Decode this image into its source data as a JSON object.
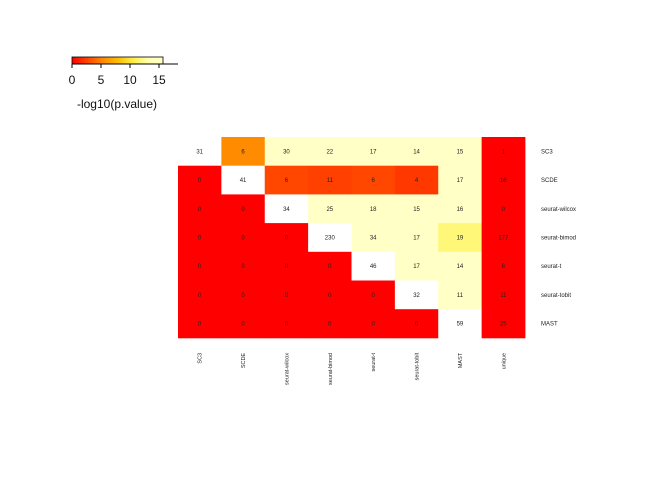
{
  "chart_data": {
    "type": "heatmap",
    "rows": [
      "SC3",
      "SCDE",
      "seurat-wilcox",
      "seurat-bimod",
      "seurat-t",
      "seurat-tobit",
      "MAST"
    ],
    "columns": [
      "SC3",
      "SCDE",
      "seurat-wilcox",
      "seurat-bimod",
      "seurat-t",
      "seurat-tobit",
      "MAST",
      "unique"
    ],
    "cell_labels": [
      [
        "31",
        "6",
        "30",
        "22",
        "17",
        "14",
        "15",
        "1"
      ],
      [
        "0",
        "41",
        "6",
        "11",
        "6",
        "4",
        "17",
        "16"
      ],
      [
        "0",
        "0",
        "34",
        "25",
        "18",
        "15",
        "16",
        "0"
      ],
      [
        "0",
        "0",
        "0",
        "230",
        "34",
        "17",
        "19",
        "177"
      ],
      [
        "0",
        "0",
        "0",
        "0",
        "46",
        "17",
        "14",
        "6"
      ],
      [
        "0",
        "0",
        "0",
        "0",
        "0",
        "32",
        "11",
        "11"
      ],
      [
        "0",
        "0",
        "0",
        "0",
        "0",
        "0",
        "59",
        "25"
      ]
    ],
    "neg_log10_pvalue": [
      [
        null,
        5.5,
        15.5,
        15.5,
        15.5,
        15.5,
        15.5,
        0
      ],
      [
        0,
        null,
        2.8,
        2.5,
        2.8,
        2.2,
        15.5,
        0
      ],
      [
        0,
        0,
        null,
        15.5,
        15.5,
        15.5,
        15.5,
        0
      ],
      [
        0,
        0,
        0,
        null,
        15.5,
        15.5,
        12.0,
        0
      ],
      [
        0,
        0,
        0,
        0,
        null,
        15.5,
        15.5,
        0
      ],
      [
        0,
        0,
        0,
        0,
        0,
        null,
        15.5,
        0
      ],
      [
        0,
        0,
        0,
        0,
        0,
        0,
        null,
        0
      ]
    ],
    "diagonal_color": "#ffffff",
    "color_scale": {
      "min": 0,
      "max": 16,
      "stops": [
        "#ff0000",
        "#ff4400",
        "#ff8800",
        "#ffbb00",
        "#ffee44",
        "#ffffaa",
        "#ffffcc"
      ]
    },
    "legend": {
      "title": "-log10(p.value)",
      "ticks": [
        0,
        5,
        10,
        15
      ],
      "placement": "top-left"
    }
  }
}
